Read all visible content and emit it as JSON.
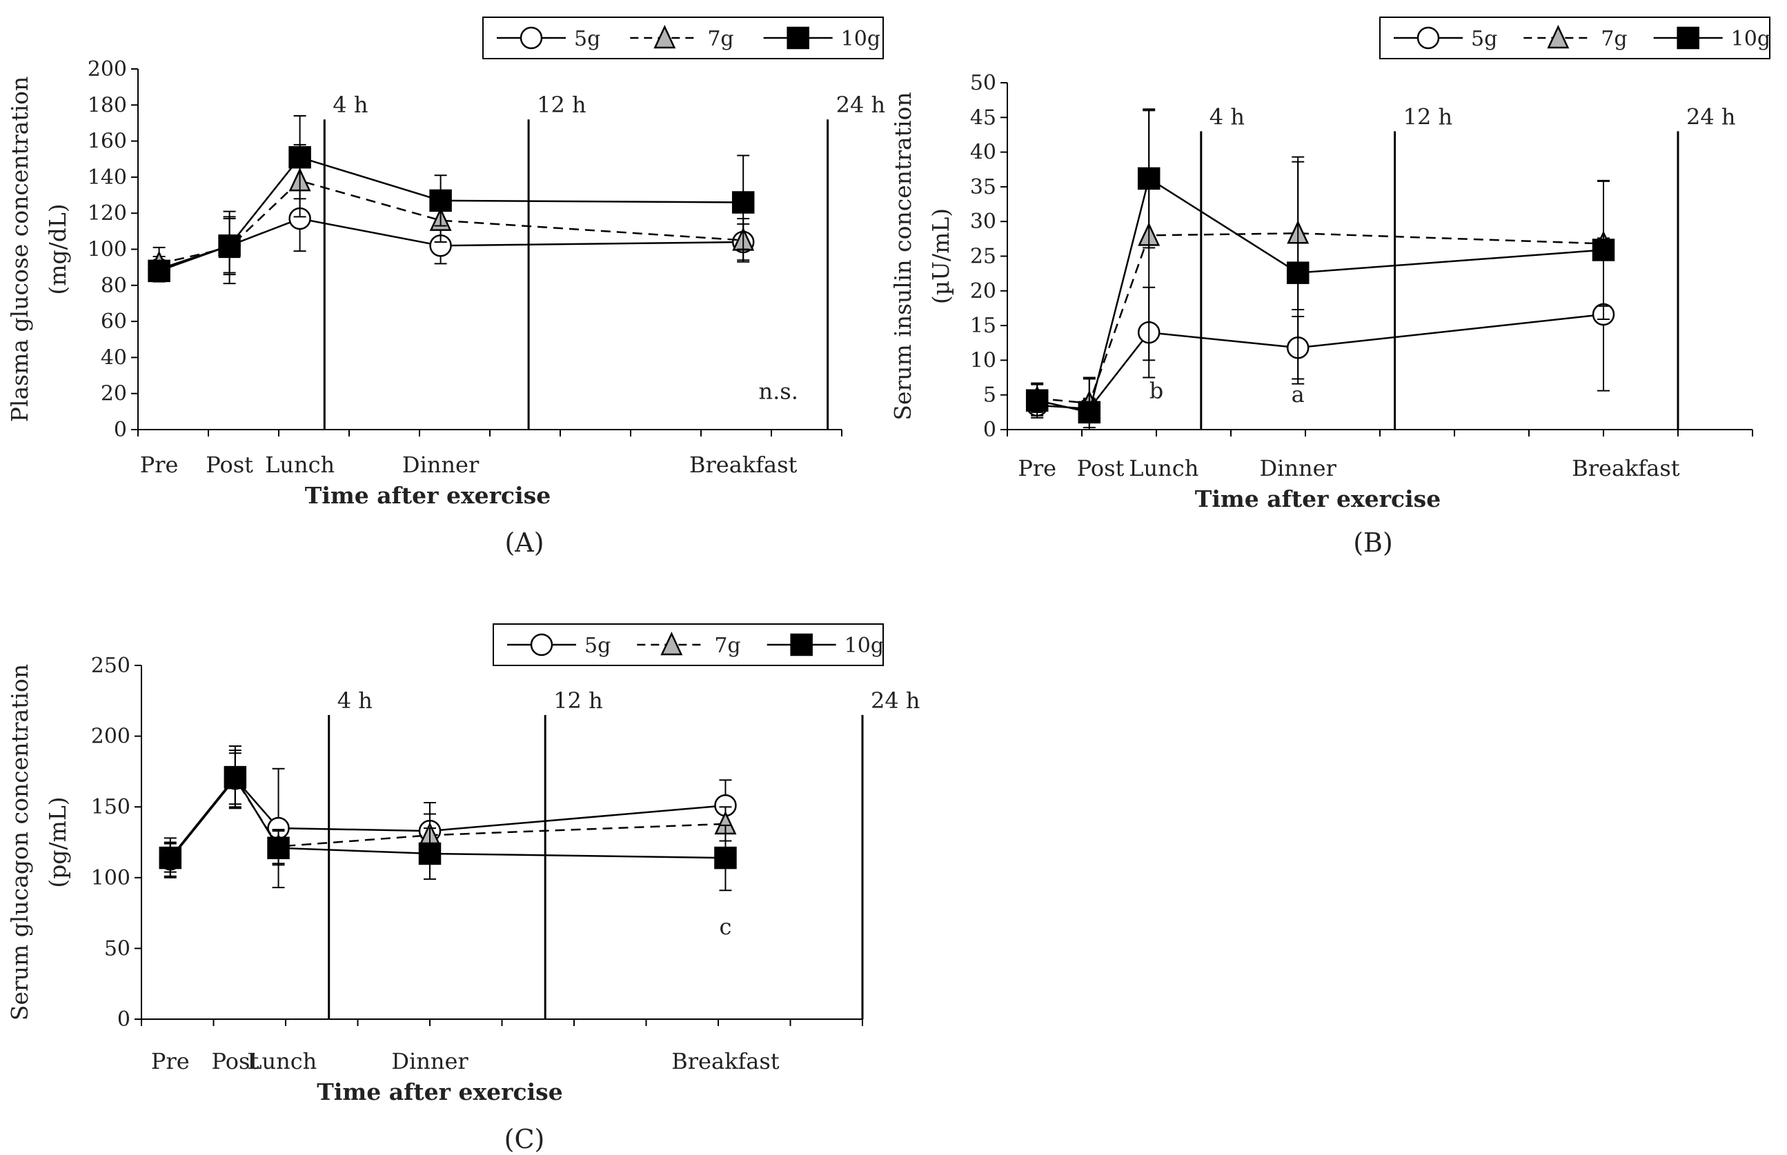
{
  "legend": {
    "series": [
      {
        "name": "5g",
        "marker": "circle",
        "dash": "solid",
        "fill": "#ffffff"
      },
      {
        "name": "7g",
        "marker": "triangle",
        "dash": "dashed",
        "fill": "#b3b3b3"
      },
      {
        "name": "10g",
        "marker": "square",
        "dash": "solid",
        "fill": "#000000"
      }
    ]
  },
  "chart_data": [
    {
      "id": "A",
      "type": "line",
      "panel_label": "(A)",
      "title": "",
      "ylabel": "Plasma glucose concentration (mg/dL)",
      "ylabel_lines": [
        "Plasma glucose concentration",
        "(mg/dL)"
      ],
      "xlabel": "Time after exercise",
      "ylim": [
        0,
        200
      ],
      "yticks": [
        0,
        20,
        40,
        60,
        80,
        100,
        120,
        140,
        160,
        180,
        200
      ],
      "xlim": [
        0,
        10
      ],
      "categories": [
        "Pre",
        "Post",
        "Lunch",
        "Dinner",
        "Breakfast"
      ],
      "x": [
        0.3,
        1.3,
        2.3,
        4.3,
        8.6
      ],
      "category_label_x": [
        0.3,
        1.3,
        2.3,
        4.3,
        8.6
      ],
      "vlines": [
        {
          "x": 2.65,
          "label": "4 h"
        },
        {
          "x": 5.55,
          "label": "12 h"
        },
        {
          "x": 9.8,
          "label": "24 h"
        }
      ],
      "annotations": [
        {
          "text": "n.s.",
          "x": 9.1,
          "y": 17
        }
      ],
      "series": [
        {
          "name": "5g",
          "values": [
            89,
            102,
            117,
            102,
            104
          ],
          "err": [
            7,
            15,
            18,
            10,
            10
          ]
        },
        {
          "name": "7g",
          "values": [
            92,
            101,
            138,
            116,
            105
          ],
          "err": [
            9,
            20,
            20,
            12,
            12
          ]
        },
        {
          "name": "10g",
          "values": [
            88,
            102,
            151,
            127,
            126
          ],
          "err": [
            5,
            16,
            23,
            14,
            26
          ]
        }
      ]
    },
    {
      "id": "B",
      "type": "line",
      "panel_label": "(B)",
      "title": "",
      "ylabel": "Serum insulin concentration (µU/mL)",
      "ylabel_lines": [
        "Serum insulin concentration",
        "(µU/mL)"
      ],
      "xlabel": "Time after exercise",
      "ylim": [
        0,
        50
      ],
      "yticks": [
        0,
        5,
        10,
        15,
        20,
        25,
        30,
        35,
        40,
        45,
        50
      ],
      "xlim": [
        0,
        10
      ],
      "categories": [
        "Pre",
        "Post",
        "Lunch",
        "Dinner",
        "Breakfast"
      ],
      "x": [
        0.4,
        1.1,
        1.9,
        3.9,
        8.0
      ],
      "category_label_x": [
        0.4,
        1.25,
        2.1,
        3.9,
        8.3
      ],
      "vlines": [
        {
          "x": 2.6,
          "label": "4 h"
        },
        {
          "x": 5.2,
          "label": "12 h"
        },
        {
          "x": 9.0,
          "label": "24 h"
        }
      ],
      "annotations": [
        {
          "text": "b",
          "x": 2.0,
          "y": 4.5
        },
        {
          "text": "a",
          "x": 3.9,
          "y": 4.0
        }
      ],
      "series": [
        {
          "name": "5g",
          "values": [
            3.5,
            3.0,
            14.0,
            11.8,
            16.6
          ],
          "err": [
            1.5,
            1.5,
            6.5,
            4.5,
            11
          ]
        },
        {
          "name": "7g",
          "values": [
            4.5,
            3.8,
            28.0,
            28.3,
            26.8
          ],
          "err": [
            2,
            3.5,
            18,
            11,
            9
          ]
        },
        {
          "name": "10g",
          "values": [
            4.2,
            2.5,
            36.2,
            22.6,
            25.9
          ],
          "err": [
            2.5,
            5,
            10,
            16,
            10
          ]
        }
      ]
    },
    {
      "id": "C",
      "type": "line",
      "panel_label": "(C)",
      "title": "",
      "ylabel": "Serum glucagon concentration (pg/mL)",
      "ylabel_lines": [
        "Serum glucagon concentration",
        "(pg/mL)"
      ],
      "xlabel": "Time after exercise",
      "ylim": [
        0,
        250
      ],
      "yticks": [
        0,
        50,
        100,
        150,
        200,
        250
      ],
      "xlim": [
        0,
        10
      ],
      "categories": [
        "Pre",
        "Post",
        "Lunch",
        "Dinner",
        "Breakfast"
      ],
      "x": [
        0.4,
        1.3,
        1.9,
        4.0,
        8.1
      ],
      "category_label_x": [
        0.4,
        1.3,
        1.95,
        4.0,
        8.1
      ],
      "vlines": [
        {
          "x": 2.6,
          "label": "4 h"
        },
        {
          "x": 5.6,
          "label": "12 h"
        },
        {
          "x": 10.0,
          "label": "24 h"
        }
      ],
      "annotations": [
        {
          "text": "c",
          "x": 8.1,
          "y": 60
        }
      ],
      "series": [
        {
          "name": "5g",
          "values": [
            113,
            170,
            135,
            133,
            151
          ],
          "err": [
            12,
            20,
            42,
            20,
            18
          ]
        },
        {
          "name": "7g",
          "values": [
            114,
            170,
            122,
            130,
            138
          ],
          "err": [
            10,
            18,
            12,
            15,
            12
          ]
        },
        {
          "name": "10g",
          "values": [
            114,
            171,
            121,
            117,
            114
          ],
          "err": [
            14,
            22,
            12,
            18,
            23
          ]
        }
      ]
    }
  ]
}
